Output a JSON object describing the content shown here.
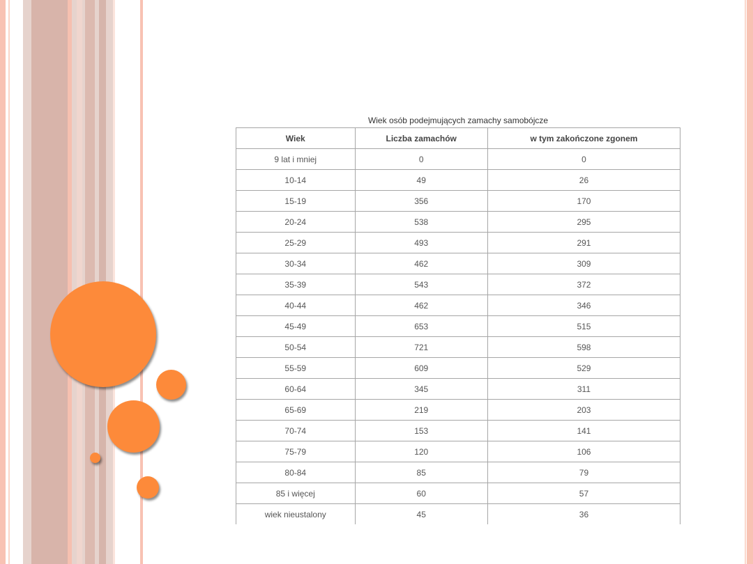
{
  "table": {
    "title": "Wiek osób podejmujących zamachy samobójcze",
    "headers": [
      "Wiek",
      "Liczba zamachów",
      "w tym zakończone zgonem"
    ],
    "rows": [
      [
        "9 lat i mniej",
        "0",
        "0"
      ],
      [
        "10-14",
        "49",
        "26"
      ],
      [
        "15-19",
        "356",
        "170"
      ],
      [
        "20-24",
        "538",
        "295"
      ],
      [
        "25-29",
        "493",
        "291"
      ],
      [
        "30-34",
        "462",
        "309"
      ],
      [
        "35-39",
        "543",
        "372"
      ],
      [
        "40-44",
        "462",
        "346"
      ],
      [
        "45-49",
        "653",
        "515"
      ],
      [
        "50-54",
        "721",
        "598"
      ],
      [
        "55-59",
        "609",
        "529"
      ],
      [
        "60-64",
        "345",
        "311"
      ],
      [
        "65-69",
        "219",
        "203"
      ],
      [
        "70-74",
        "153",
        "141"
      ],
      [
        "75-79",
        "120",
        "106"
      ],
      [
        "80-84",
        "85",
        "79"
      ],
      [
        "85 i więcej",
        "60",
        "57"
      ],
      [
        "wiek nieustalony",
        "45",
        "36"
      ]
    ]
  },
  "theme": {
    "accent_orange": "#fd8a3a",
    "stripe_pink": "#f8c2b3",
    "stripe_gray": "#d9c6c0"
  }
}
